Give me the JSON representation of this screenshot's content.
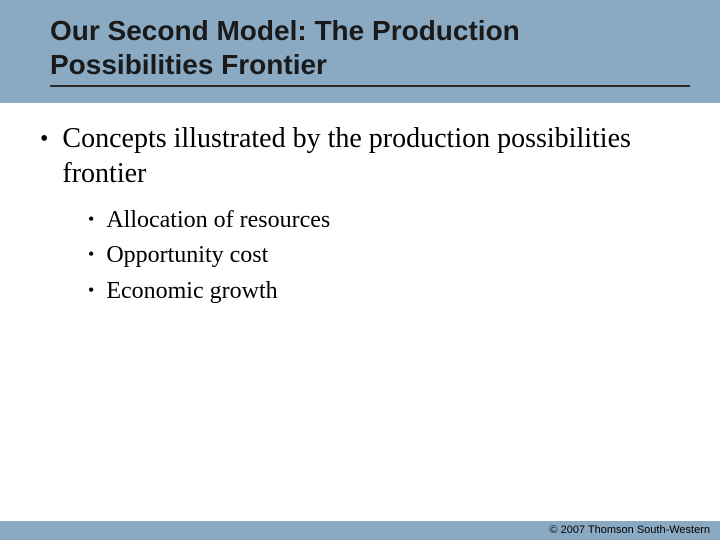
{
  "colors": {
    "background": "#8aa9c2",
    "panel_bg": "#ffffff",
    "title_text": "#1a1a1a",
    "title_rule": "#2a2a2a",
    "body_text": "#000000"
  },
  "typography": {
    "title_font": "Arial",
    "title_size_pt": 21,
    "title_weight": "bold",
    "body_font": "Times New Roman",
    "main_bullet_size_pt": 21,
    "sub_bullet_size_pt": 18
  },
  "title": "Our Second Model: The Production Possibilities Frontier",
  "main_bullet": "Concepts illustrated by the production possibilities frontier",
  "sub_bullets": {
    "0": "Allocation of resources",
    "1": "Opportunity cost",
    "2": "Economic growth"
  },
  "footer": "© 2007 Thomson South-Western"
}
